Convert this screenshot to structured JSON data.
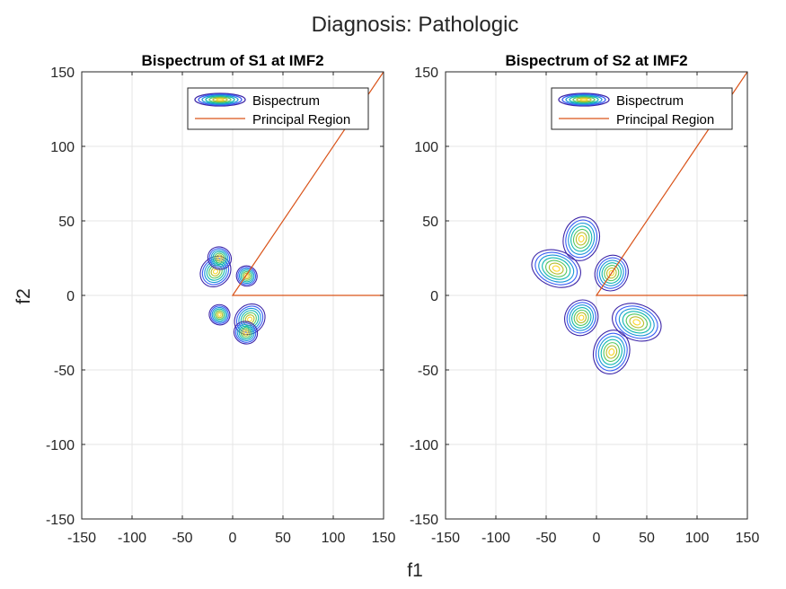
{
  "figure": {
    "suptitle": "Diagnosis: Pathologic",
    "xlabel": "f1",
    "ylabel": "f2"
  },
  "chart_data": [
    {
      "type": "contour",
      "title": "Bispectrum of S1 at IMF2",
      "xlim": [
        -150,
        150
      ],
      "ylim": [
        -150,
        150
      ],
      "xticks": [
        -150,
        -100,
        -50,
        0,
        50,
        100,
        150
      ],
      "yticks": [
        -150,
        -100,
        -50,
        0,
        50,
        100,
        150
      ],
      "grid": true,
      "legend": {
        "placement": "top-right",
        "entries": [
          "Bispectrum",
          "Principal Region"
        ]
      },
      "principal_region": [
        [
          0,
          0
        ],
        [
          150,
          150
        ],
        [
          0,
          0
        ],
        [
          150,
          0
        ]
      ],
      "lobes": [
        {
          "cx": -17,
          "cy": 16,
          "rx": 14,
          "ry": 11,
          "angle": -45
        },
        {
          "cx": -13,
          "cy": 25,
          "rx": 11,
          "ry": 8,
          "angle": 60
        },
        {
          "cx": 14,
          "cy": 13,
          "rx": 10,
          "ry": 7,
          "angle": 60
        },
        {
          "cx": -13,
          "cy": -13,
          "rx": 10,
          "ry": 7,
          "angle": 60
        },
        {
          "cx": 17,
          "cy": -16,
          "rx": 14,
          "ry": 11,
          "angle": -45
        },
        {
          "cx": 13,
          "cy": -25,
          "rx": 11,
          "ry": 8,
          "angle": 60
        }
      ]
    },
    {
      "type": "contour",
      "title": "Bispectrum of S2 at IMF2",
      "xlim": [
        -150,
        150
      ],
      "ylim": [
        -150,
        150
      ],
      "xticks": [
        -150,
        -100,
        -50,
        0,
        50,
        100,
        150
      ],
      "yticks": [
        -150,
        -100,
        -50,
        0,
        50,
        100,
        150
      ],
      "grid": true,
      "legend": {
        "placement": "top-right",
        "entries": [
          "Bispectrum",
          "Principal Region"
        ]
      },
      "principal_region": [
        [
          0,
          0
        ],
        [
          150,
          150
        ],
        [
          0,
          0
        ],
        [
          150,
          0
        ]
      ],
      "lobes": [
        {
          "cx": -15,
          "cy": 38,
          "rx": 22,
          "ry": 12,
          "angle": 75
        },
        {
          "cx": -40,
          "cy": 18,
          "rx": 25,
          "ry": 12,
          "angle": -20
        },
        {
          "cx": 15,
          "cy": 15,
          "rx": 18,
          "ry": 11,
          "angle": 65
        },
        {
          "cx": -15,
          "cy": -15,
          "rx": 18,
          "ry": 11,
          "angle": 65
        },
        {
          "cx": 40,
          "cy": -18,
          "rx": 25,
          "ry": 12,
          "angle": -20
        },
        {
          "cx": 15,
          "cy": -38,
          "rx": 22,
          "ry": 12,
          "angle": 75
        }
      ]
    }
  ],
  "colors": {
    "axes": "#262626",
    "grid": "#e6e6e6",
    "principal_region": "#d95319",
    "contour_levels": [
      "#3d26a8",
      "#3a5ef5",
      "#1b96d8",
      "#10b8b0",
      "#55c760",
      "#b7bd2c",
      "#f9d62a"
    ]
  }
}
